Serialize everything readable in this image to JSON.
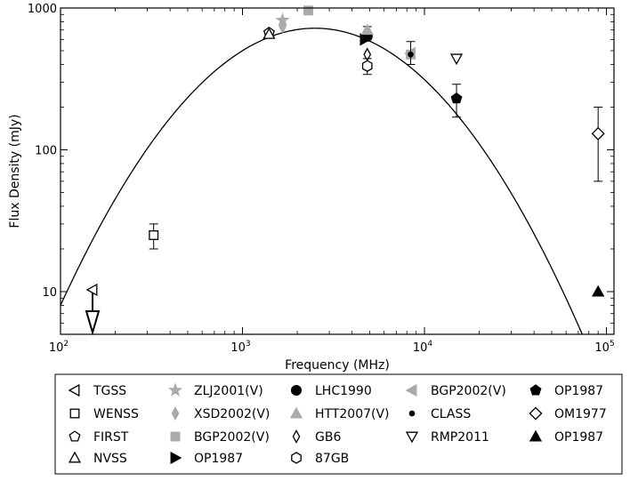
{
  "chart_data": {
    "type": "scatter",
    "title": "",
    "xlabel": "Frequency (MHz)",
    "ylabel": "Flux Density (mJy)",
    "xscale": "log",
    "yscale": "log",
    "xlim": [
      100,
      110000
    ],
    "ylim": [
      5,
      1000
    ],
    "grid": false,
    "legend_placement": "below",
    "x_ticks": [
      {
        "value": 100,
        "base": "10",
        "exp": "2"
      },
      {
        "value": 1000,
        "base": "10",
        "exp": "3"
      },
      {
        "value": 10000,
        "base": "10",
        "exp": "4"
      },
      {
        "value": 100000,
        "base": "10",
        "exp": "5"
      }
    ],
    "y_ticks": [
      {
        "value": 10,
        "label": "10"
      },
      {
        "value": 100,
        "label": "100"
      },
      {
        "value": 1000,
        "label": "1000"
      }
    ],
    "fit_curve": {
      "type": "log-parabola",
      "peak_frequency": 2500,
      "peak_flux": 720,
      "curvature": 1.0
    },
    "series": [
      {
        "name": "TGSS",
        "marker": "tri-left",
        "filled": false,
        "color": "#000000",
        "points": [
          {
            "x": 150,
            "y": 10.3
          }
        ]
      },
      {
        "name": "WENSS",
        "marker": "square",
        "filled": false,
        "color": "#000000",
        "points": [
          {
            "x": 325,
            "y": 25,
            "err_low": 20,
            "err_high": 30
          }
        ]
      },
      {
        "name": "FIRST",
        "marker": "pentagon",
        "filled": false,
        "color": "#000000",
        "points": [
          {
            "x": 1400,
            "y": 670
          }
        ]
      },
      {
        "name": "NVSS",
        "marker": "tri-up",
        "filled": false,
        "color": "#000000",
        "points": [
          {
            "x": 1400,
            "y": 655
          }
        ]
      },
      {
        "name": "ZLJ2001(V)",
        "marker": "star",
        "filled": true,
        "color": "#aaaaaa",
        "points": [
          {
            "x": 1660,
            "y": 820
          }
        ]
      },
      {
        "name": "XSD2002(V)",
        "marker": "thin-diamond",
        "filled": true,
        "color": "#aaaaaa",
        "points": [
          {
            "x": 1660,
            "y": 740
          }
        ]
      },
      {
        "name": "BGP2002(V)",
        "marker": "square",
        "filled": true,
        "color": "#aaaaaa",
        "points": [
          {
            "x": 2300,
            "y": 960,
            "err_low": 905,
            "err_high": 1010
          },
          {
            "x": 8400,
            "y": 470
          }
        ]
      },
      {
        "name": "OP1987",
        "marker": "tri-right",
        "filled": true,
        "color": "#000000",
        "points": [
          {
            "x": 4700,
            "y": 600
          }
        ]
      },
      {
        "name": "LHC1990",
        "marker": "circle",
        "filled": true,
        "color": "#000000",
        "points": [
          {
            "x": 4850,
            "y": 630
          }
        ]
      },
      {
        "name": "HTT2007(V)",
        "marker": "tri-up",
        "filled": true,
        "color": "#aaaaaa",
        "points": [
          {
            "x": 4850,
            "y": 700,
            "err_low": 640,
            "err_high": 740
          }
        ]
      },
      {
        "name": "GB6",
        "marker": "thin-diamond",
        "filled": false,
        "color": "#000000",
        "points": [
          {
            "x": 4850,
            "y": 470
          }
        ]
      },
      {
        "name": "87GB",
        "marker": "hexagon",
        "filled": false,
        "color": "#000000",
        "points": [
          {
            "x": 4850,
            "y": 390,
            "err_low": 340,
            "err_high": 440
          }
        ]
      },
      {
        "name": "BGP2002(V)",
        "marker": "tri-left",
        "filled": true,
        "color": "#aaaaaa",
        "points": [
          {
            "x": 8400,
            "y": 480
          }
        ]
      },
      {
        "name": "CLASS",
        "marker": "dot",
        "filled": true,
        "color": "#000000",
        "points": [
          {
            "x": 8400,
            "y": 470,
            "err_low": 400,
            "err_high": 580
          }
        ]
      },
      {
        "name": "RMP2011",
        "marker": "tri-down",
        "filled": false,
        "color": "#000000",
        "points": [
          {
            "x": 15000,
            "y": 440
          }
        ]
      },
      {
        "name": "OP1987",
        "marker": "pentagon",
        "filled": true,
        "color": "#000000",
        "points": [
          {
            "x": 15000,
            "y": 230,
            "err_low": 170,
            "err_high": 290
          }
        ]
      },
      {
        "name": "OM1977",
        "marker": "diamond",
        "filled": false,
        "color": "#000000",
        "points": [
          {
            "x": 90000,
            "y": 130,
            "err_low": 60,
            "err_high": 200
          }
        ]
      },
      {
        "name": "OP1987",
        "marker": "tri-up",
        "filled": true,
        "color": "#000000",
        "points": [
          {
            "x": 90000,
            "y": 10
          }
        ]
      }
    ],
    "upper_limits": [
      {
        "x": 150,
        "y": 10.3
      }
    ]
  }
}
